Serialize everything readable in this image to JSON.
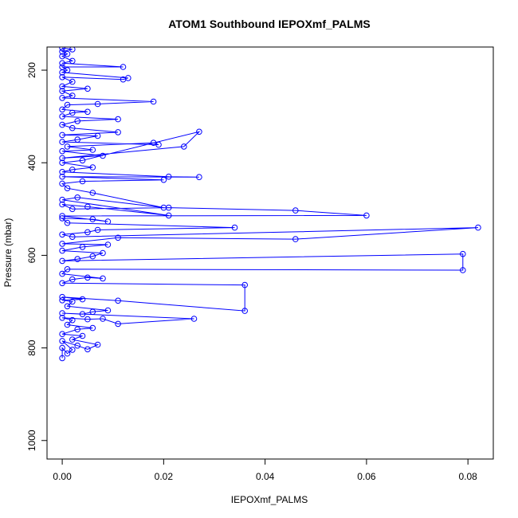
{
  "chart_data": {
    "type": "line",
    "title": "ATOM1 Southbound IEPOXmf_PALMS",
    "xlabel": "IEPOXmf_PALMS",
    "ylabel": "Pressure (mbar)",
    "xlim": [
      -0.003,
      0.085
    ],
    "ylim": [
      1040,
      150
    ],
    "y_reversed": true,
    "grid": false,
    "x_ticks": [
      0.0,
      0.02,
      0.04,
      0.06,
      0.08
    ],
    "x_tick_labels": [
      "0.00",
      "0.02",
      "0.04",
      "0.06",
      "0.08"
    ],
    "y_ticks": [
      200,
      400,
      600,
      800,
      1000
    ],
    "y_tick_labels": [
      "200",
      "400",
      "600",
      "800",
      "1000"
    ],
    "series": [
      {
        "color": "#0000ff",
        "marker": "circle-open",
        "points": [
          [
            0.0,
            822
          ],
          [
            0.0,
            800
          ],
          [
            0.001,
            812
          ],
          [
            0.002,
            804
          ],
          [
            0.0,
            785
          ],
          [
            0.003,
            795
          ],
          [
            0.005,
            803
          ],
          [
            0.007,
            793
          ],
          [
            0.002,
            782
          ],
          [
            0.004,
            774
          ],
          [
            0.0,
            770
          ],
          [
            0.003,
            760
          ],
          [
            0.006,
            757
          ],
          [
            0.001,
            750
          ],
          [
            0.002,
            740
          ],
          [
            0.0,
            735
          ],
          [
            0.005,
            738
          ],
          [
            0.008,
            737
          ],
          [
            0.011,
            748
          ],
          [
            0.026,
            737
          ],
          [
            0.0,
            725
          ],
          [
            0.004,
            727
          ],
          [
            0.006,
            722
          ],
          [
            0.009,
            719
          ],
          [
            0.001,
            710
          ],
          [
            0.002,
            700
          ],
          [
            0.0,
            697
          ],
          [
            0.004,
            695
          ],
          [
            0.0,
            690
          ],
          [
            0.011,
            698
          ],
          [
            0.036,
            720
          ],
          [
            0.036,
            664
          ],
          [
            0.0,
            660
          ],
          [
            0.002,
            652
          ],
          [
            0.005,
            648
          ],
          [
            0.008,
            650
          ],
          [
            0.0,
            640
          ],
          [
            0.001,
            630
          ],
          [
            0.079,
            632
          ],
          [
            0.079,
            597
          ],
          [
            0.0,
            612
          ],
          [
            0.003,
            608
          ],
          [
            0.006,
            602
          ],
          [
            0.008,
            595
          ],
          [
            0.0,
            590
          ],
          [
            0.004,
            582
          ],
          [
            0.009,
            577
          ],
          [
            0.0,
            575
          ],
          [
            0.011,
            562
          ],
          [
            0.046,
            565
          ],
          [
            0.082,
            540
          ],
          [
            0.002,
            560
          ],
          [
            0.0,
            555
          ],
          [
            0.005,
            550
          ],
          [
            0.007,
            545
          ],
          [
            0.034,
            540
          ],
          [
            0.001,
            530
          ],
          [
            0.0,
            520
          ],
          [
            0.006,
            522
          ],
          [
            0.009,
            527
          ],
          [
            0.0,
            515
          ],
          [
            0.06,
            514
          ],
          [
            0.046,
            503
          ],
          [
            0.021,
            497
          ],
          [
            0.002,
            500
          ],
          [
            0.0,
            490
          ],
          [
            0.005,
            495
          ],
          [
            0.021,
            514
          ],
          [
            0.0,
            480
          ],
          [
            0.003,
            475
          ],
          [
            0.02,
            497
          ],
          [
            0.006,
            465
          ],
          [
            0.001,
            455
          ],
          [
            0.0,
            445
          ],
          [
            0.004,
            440
          ],
          [
            0.02,
            437
          ],
          [
            0.0,
            430
          ],
          [
            0.027,
            431
          ],
          [
            0.021,
            430
          ],
          [
            0.0,
            420
          ],
          [
            0.002,
            415
          ],
          [
            0.006,
            410
          ],
          [
            0.0,
            400
          ],
          [
            0.004,
            395
          ],
          [
            0.027,
            333
          ],
          [
            0.024,
            365
          ],
          [
            0.0,
            390
          ],
          [
            0.008,
            385
          ],
          [
            0.0,
            375
          ],
          [
            0.006,
            372
          ],
          [
            0.001,
            365
          ],
          [
            0.018,
            357
          ],
          [
            0.019,
            361
          ],
          [
            0.0,
            355
          ],
          [
            0.003,
            350
          ],
          [
            0.007,
            342
          ],
          [
            0.0,
            340
          ],
          [
            0.011,
            334
          ],
          [
            0.002,
            325
          ],
          [
            0.0,
            318
          ],
          [
            0.003,
            310
          ],
          [
            0.011,
            306
          ],
          [
            0.0,
            300
          ],
          [
            0.002,
            292
          ],
          [
            0.005,
            290
          ],
          [
            0.0,
            285
          ],
          [
            0.001,
            275
          ],
          [
            0.007,
            273
          ],
          [
            0.018,
            268
          ],
          [
            0.0,
            260
          ],
          [
            0.002,
            255
          ],
          [
            0.0,
            245
          ],
          [
            0.005,
            240
          ],
          [
            0.0,
            235
          ],
          [
            0.002,
            225
          ],
          [
            0.0,
            215
          ],
          [
            0.012,
            220
          ],
          [
            0.013,
            217
          ],
          [
            0.0,
            205
          ],
          [
            0.001,
            200
          ],
          [
            0.0,
            193
          ],
          [
            0.012,
            193
          ],
          [
            0.0,
            185
          ],
          [
            0.002,
            180
          ],
          [
            0.0,
            170
          ],
          [
            0.001,
            165
          ],
          [
            0.0,
            160
          ],
          [
            0.002,
            155
          ],
          [
            0.0,
            152
          ]
        ]
      }
    ]
  }
}
